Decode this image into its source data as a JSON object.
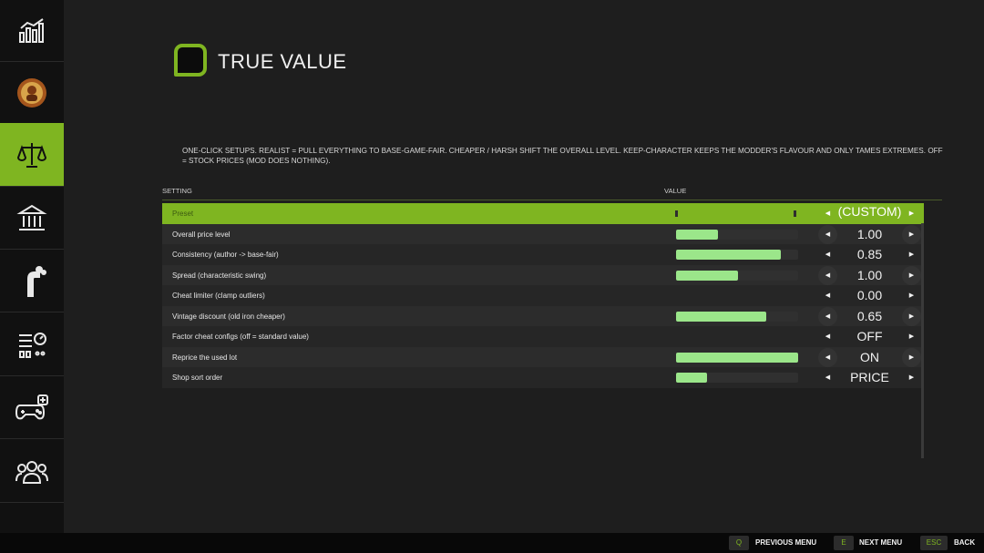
{
  "sidebar": {
    "items": [
      {
        "icon": "stats-chart-icon"
      },
      {
        "icon": "mod-badge-icon"
      },
      {
        "icon": "scales-icon",
        "active": true
      },
      {
        "icon": "bank-icon"
      },
      {
        "icon": "pipe-icon"
      },
      {
        "icon": "settings-sliders-icon"
      },
      {
        "icon": "gamepad-icon"
      },
      {
        "icon": "users-icon"
      },
      {
        "icon": "settings-sliders-icon"
      }
    ]
  },
  "header": {
    "title": "TRUE VALUE",
    "description": "ONE-CLICK SETUPS. REALIST = PULL EVERYTHING TO BASE-GAME-FAIR. CHEAPER / HARSH SHIFT THE OVERALL LEVEL. KEEP-CHARACTER KEEPS THE MODDER'S FLAVOUR AND ONLY TAMES EXTREMES. OFF = STOCK PRICES (MOD DOES NOTHING)."
  },
  "table": {
    "col_setting": "SETTING",
    "col_value": "VALUE",
    "rows": [
      {
        "label": "Preset",
        "value": "(CUSTOM)",
        "bar": null,
        "selected": true
      },
      {
        "label": "Overall price level",
        "value": "1.00",
        "bar": 0.34
      },
      {
        "label": "Consistency  (author -> base-fair)",
        "value": "0.85",
        "bar": 0.86
      },
      {
        "label": "Spread  (characteristic swing)",
        "value": "1.00",
        "bar": 0.51
      },
      {
        "label": "Cheat limiter  (clamp outliers)",
        "value": "0.00",
        "bar": null
      },
      {
        "label": "Vintage discount  (old iron cheaper)",
        "value": "0.65",
        "bar": 0.74
      },
      {
        "label": "Factor cheat configs  (off = standard value)",
        "value": "OFF",
        "bar": null
      },
      {
        "label": "Reprice the used lot",
        "value": "ON",
        "bar": 1.0
      },
      {
        "label": "Shop sort order",
        "value": "PRICE",
        "bar": 0.25
      }
    ]
  },
  "footer": {
    "prev_key": "Q",
    "prev_label": "PREVIOUS MENU",
    "next_key": "E",
    "next_label": "NEXT MENU",
    "back_key": "ESC",
    "back_label": "BACK"
  },
  "colors": {
    "accent": "#7fb521",
    "bar_fill": "#9be68a"
  }
}
